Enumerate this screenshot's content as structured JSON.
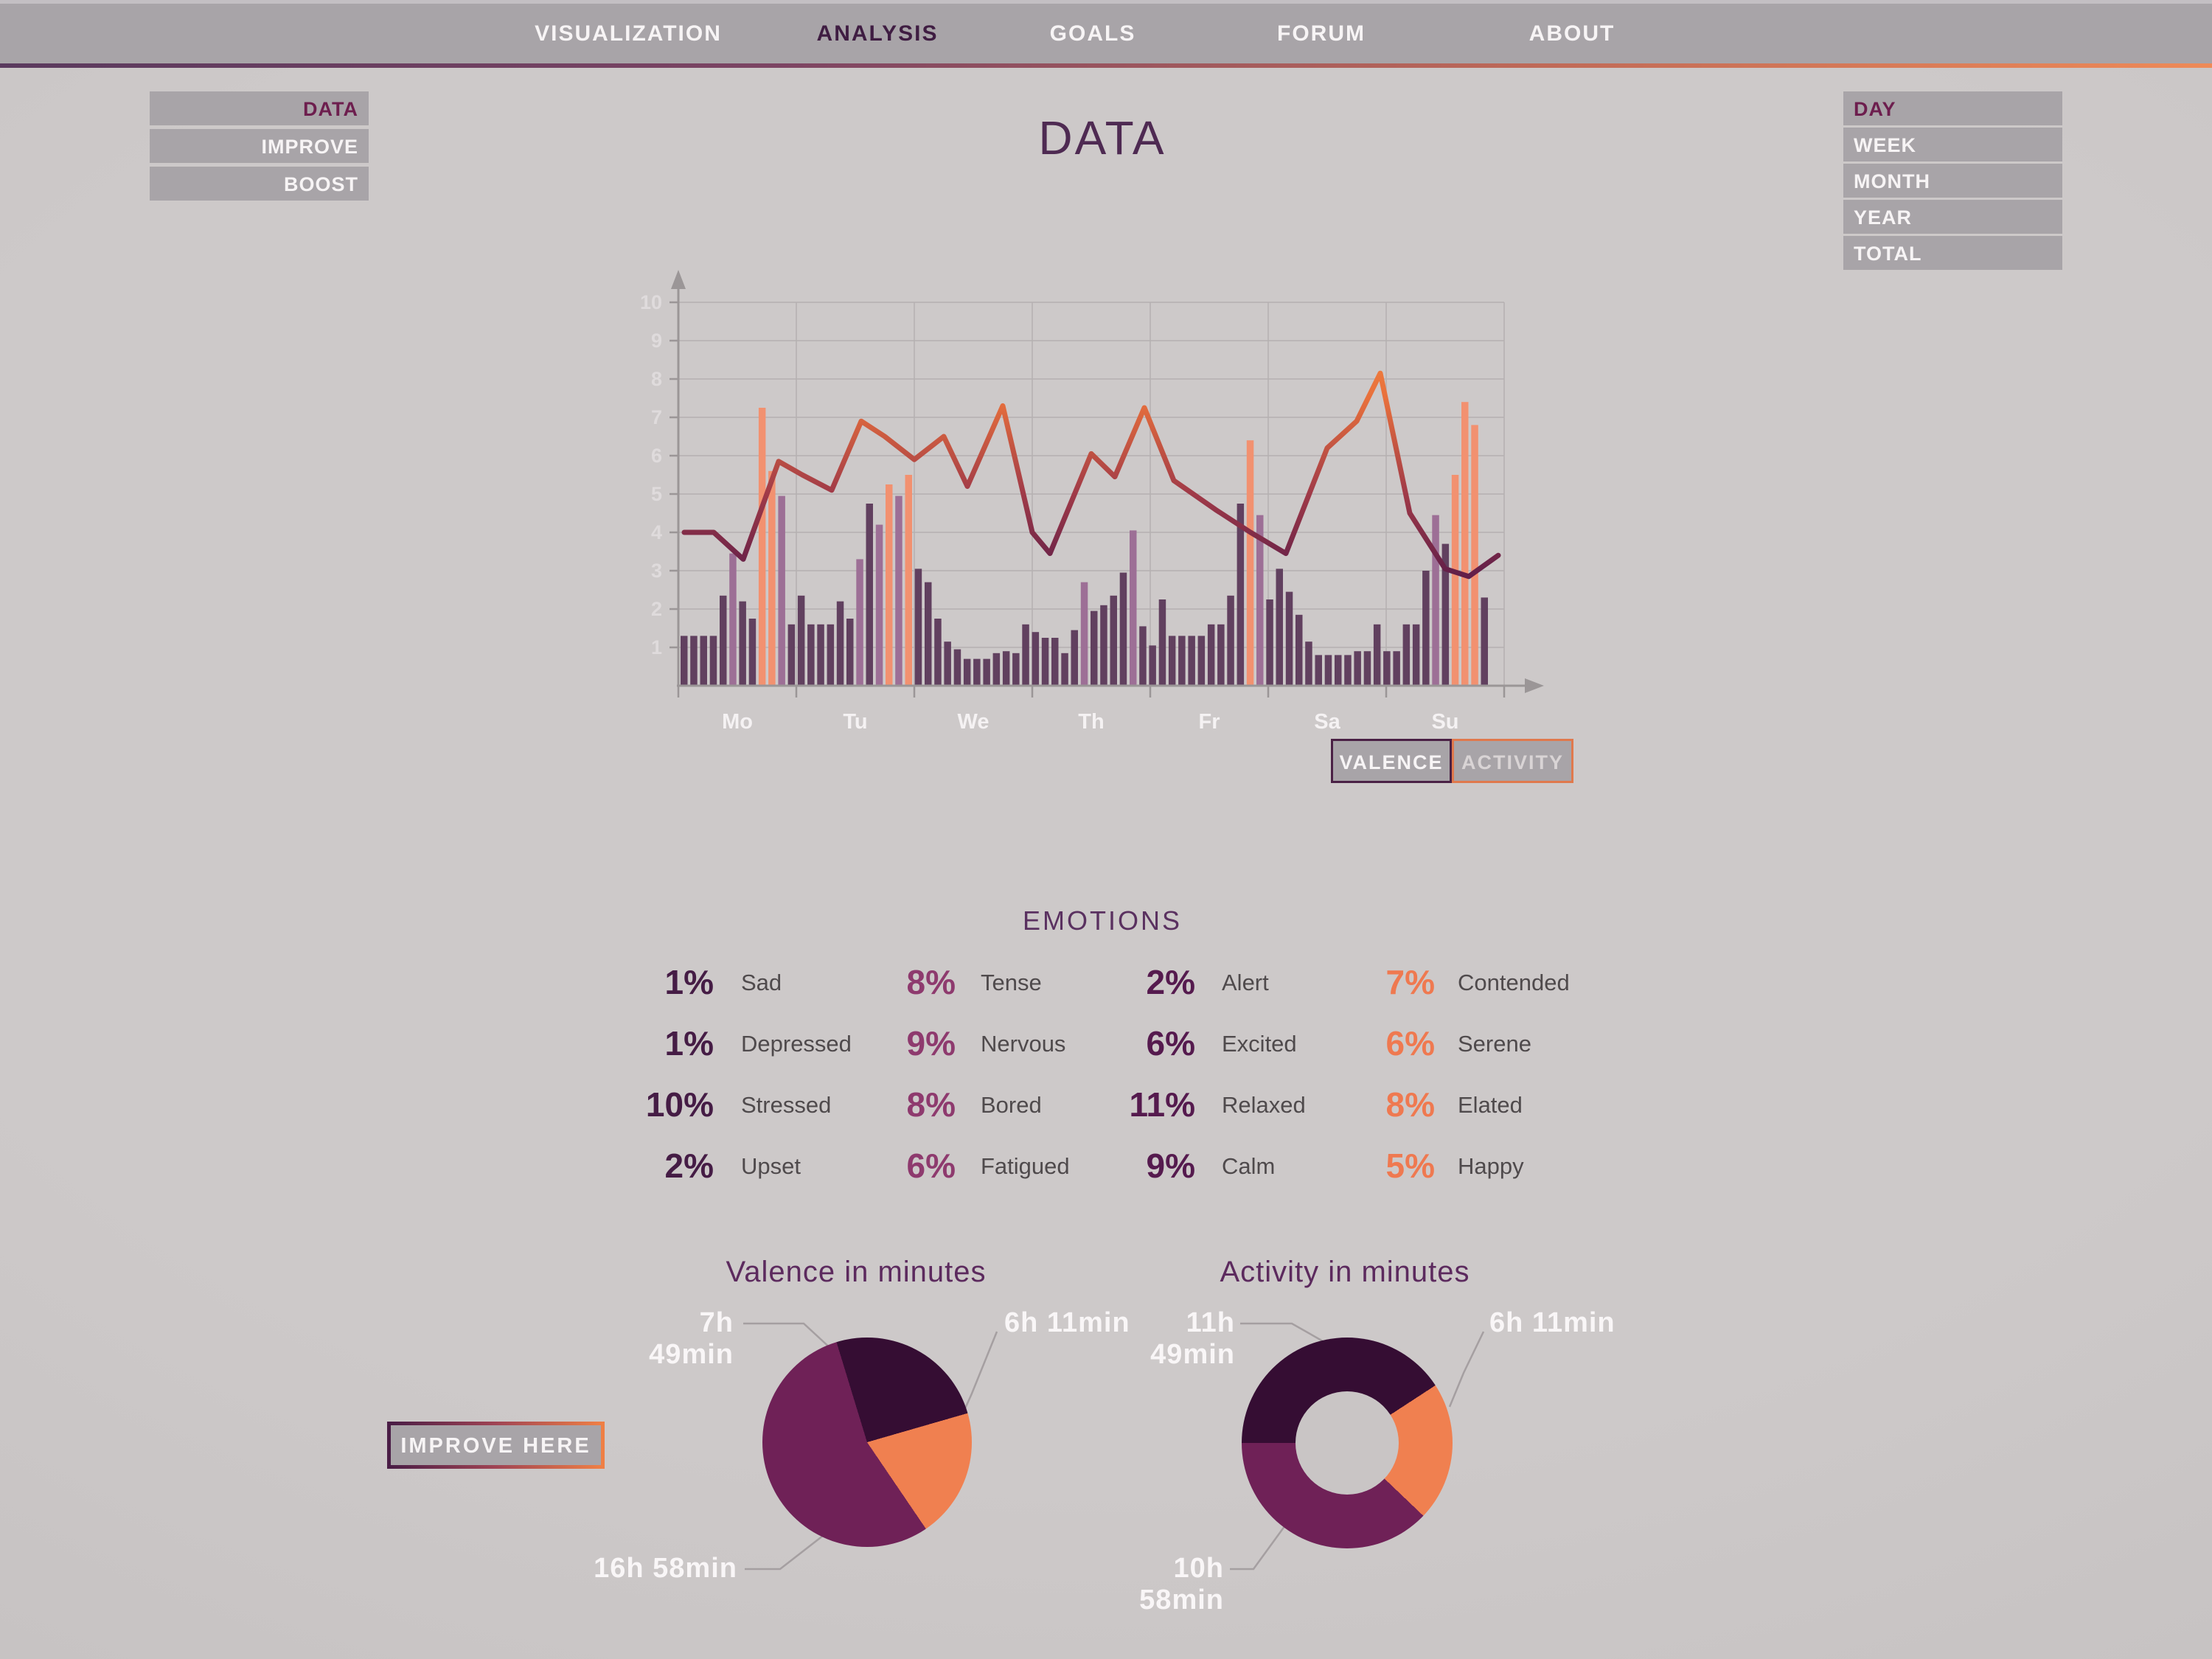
{
  "ui": {
    "nav": {
      "items": [
        "VISUALIZATION",
        "ANALYSIS",
        "GOALS",
        "FORUM",
        "ABOUT"
      ],
      "active": "ANALYSIS"
    },
    "left_menu": [
      "DATA",
      "IMPROVE",
      "BOOST"
    ],
    "left_menu_active": "DATA",
    "right_menu": [
      "DAY",
      "WEEK",
      "MONTH",
      "YEAR",
      "TOTAL"
    ],
    "right_menu_active": "DAY",
    "title": "DATA",
    "toggle": {
      "valence": "VALENCE",
      "activity": "ACTIVITY"
    },
    "emotions_heading": "EMOTIONS",
    "improve_button": "IMPROVE HERE",
    "colors": {
      "panel_gray": "#a8a4a8",
      "accent_maroon": "#6d1e4e",
      "accent_orange": "#ef8050",
      "accent_plum": "#6f2157",
      "accent_dark_purple": "#350d33"
    }
  },
  "emotions": {
    "columns": [
      {
        "color": "#451c45",
        "items": [
          {
            "pct": "1%",
            "label": "Sad"
          },
          {
            "pct": "1%",
            "label": "Depressed"
          },
          {
            "pct": "10%",
            "label": "Stressed"
          },
          {
            "pct": "2%",
            "label": "Upset"
          }
        ]
      },
      {
        "color": "#8e3a6e",
        "items": [
          {
            "pct": "8%",
            "label": "Tense"
          },
          {
            "pct": "9%",
            "label": "Nervous"
          },
          {
            "pct": "8%",
            "label": "Bored"
          },
          {
            "pct": "6%",
            "label": "Fatigued"
          }
        ]
      },
      {
        "color": "#551a4e",
        "items": [
          {
            "pct": "2%",
            "label": "Alert"
          },
          {
            "pct": "6%",
            "label": "Excited"
          },
          {
            "pct": "11%",
            "label": "Relaxed"
          },
          {
            "pct": "9%",
            "label": "Calm"
          }
        ]
      },
      {
        "color": "#ef7950",
        "items": [
          {
            "pct": "7%",
            "label": "Contended"
          },
          {
            "pct": "6%",
            "label": "Serene"
          },
          {
            "pct": "8%",
            "label": "Elated"
          },
          {
            "pct": "5%",
            "label": "Happy"
          }
        ]
      }
    ]
  },
  "chart_data": [
    {
      "type": "bar",
      "title": "DATA (weekly valence line over activity bars)",
      "x_labels": [
        "Mo",
        "Tu",
        "We",
        "Th",
        "Fr",
        "Sa",
        "Su"
      ],
      "y_ticks": [
        1,
        2,
        3,
        4,
        5,
        6,
        7,
        8,
        9,
        10
      ],
      "ylim": [
        0,
        10
      ],
      "grid": true,
      "bars": {
        "values": [
          1.3,
          1.3,
          1.3,
          1.3,
          2.35,
          3.45,
          2.2,
          1.75,
          7.25,
          5.6,
          4.95,
          1.6,
          2.35,
          1.6,
          1.6,
          1.6,
          2.2,
          1.75,
          3.3,
          4.75,
          4.2,
          5.25,
          4.95,
          5.5,
          3.05,
          2.7,
          1.75,
          1.15,
          0.95,
          0.7,
          0.7,
          0.7,
          0.85,
          0.9,
          0.85,
          1.6,
          1.4,
          1.25,
          1.25,
          0.85,
          1.45,
          2.7,
          1.95,
          2.1,
          2.35,
          2.95,
          4.05,
          1.55,
          1.05,
          2.25,
          1.3,
          1.3,
          1.3,
          1.3,
          1.6,
          1.6,
          2.35,
          4.75,
          6.4,
          4.45,
          2.25,
          3.05,
          2.45,
          1.85,
          1.15,
          0.8,
          0.8,
          0.8,
          0.8,
          0.9,
          0.9,
          1.6,
          0.9,
          0.9,
          1.6,
          1.6,
          3.0,
          4.45,
          3.7,
          5.5,
          7.4,
          6.8,
          2.3
        ],
        "colors": [
          "d",
          "d",
          "d",
          "d",
          "d",
          "l",
          "d",
          "d",
          "o",
          "o",
          "l",
          "d",
          "d",
          "d",
          "d",
          "d",
          "d",
          "d",
          "l",
          "d",
          "l",
          "o",
          "l",
          "o",
          "d",
          "d",
          "d",
          "d",
          "d",
          "d",
          "d",
          "d",
          "d",
          "d",
          "d",
          "d",
          "d",
          "d",
          "d",
          "d",
          "d",
          "l",
          "d",
          "d",
          "d",
          "d",
          "l",
          "d",
          "d",
          "d",
          "d",
          "d",
          "d",
          "d",
          "d",
          "d",
          "d",
          "d",
          "o",
          "l",
          "d",
          "d",
          "d",
          "d",
          "d",
          "d",
          "d",
          "d",
          "d",
          "d",
          "d",
          "d",
          "d",
          "d",
          "d",
          "d",
          "d",
          "l",
          "d",
          "o",
          "o",
          "o",
          "d"
        ],
        "color_map": {
          "d": "#61405f",
          "l": "#9d6f96",
          "o": "#f29170"
        }
      },
      "line": {
        "points_day_value": [
          [
            0.05,
            4.0
          ],
          [
            0.3,
            4.0
          ],
          [
            0.55,
            3.3
          ],
          [
            0.85,
            5.85
          ],
          [
            1.05,
            5.5
          ],
          [
            1.3,
            5.1
          ],
          [
            1.55,
            6.9
          ],
          [
            1.75,
            6.5
          ],
          [
            2.0,
            5.9
          ],
          [
            2.25,
            6.5
          ],
          [
            2.45,
            5.2
          ],
          [
            2.75,
            7.3
          ],
          [
            3.0,
            4.0
          ],
          [
            3.15,
            3.45
          ],
          [
            3.5,
            6.05
          ],
          [
            3.7,
            5.45
          ],
          [
            3.95,
            7.25
          ],
          [
            4.2,
            5.35
          ],
          [
            4.55,
            4.6
          ],
          [
            4.85,
            4.0
          ],
          [
            5.15,
            3.45
          ],
          [
            5.5,
            6.2
          ],
          [
            5.75,
            6.9
          ],
          [
            5.95,
            8.15
          ],
          [
            6.2,
            4.5
          ],
          [
            6.5,
            3.05
          ],
          [
            6.7,
            2.85
          ],
          [
            6.95,
            3.4
          ]
        ],
        "gradient_low_to_high": [
          "#2d092c",
          "#571a49",
          "#a03a48",
          "#e8703c",
          "#f79040"
        ]
      }
    },
    {
      "type": "pie",
      "title": "Valence in minutes",
      "start_deg": -17,
      "slices": [
        {
          "label": "7h 49min",
          "hours": 7.8167,
          "color": "#350d33"
        },
        {
          "label": "6h 11min",
          "hours": 6.1833,
          "color": "#f08050"
        },
        {
          "label": "16h 58min",
          "hours": 16.9667,
          "color": "#6f2157"
        }
      ]
    },
    {
      "type": "pie",
      "subtype": "donut",
      "title": "Activity in minutes",
      "start_deg": -90,
      "slices": [
        {
          "label": "11h 49min",
          "hours": 11.8167,
          "color": "#350d33"
        },
        {
          "label": "6h 11min",
          "hours": 6.1833,
          "color": "#f08050"
        },
        {
          "label": "10h 58min",
          "hours": 10.9667,
          "color": "#6f2157"
        }
      ]
    }
  ]
}
